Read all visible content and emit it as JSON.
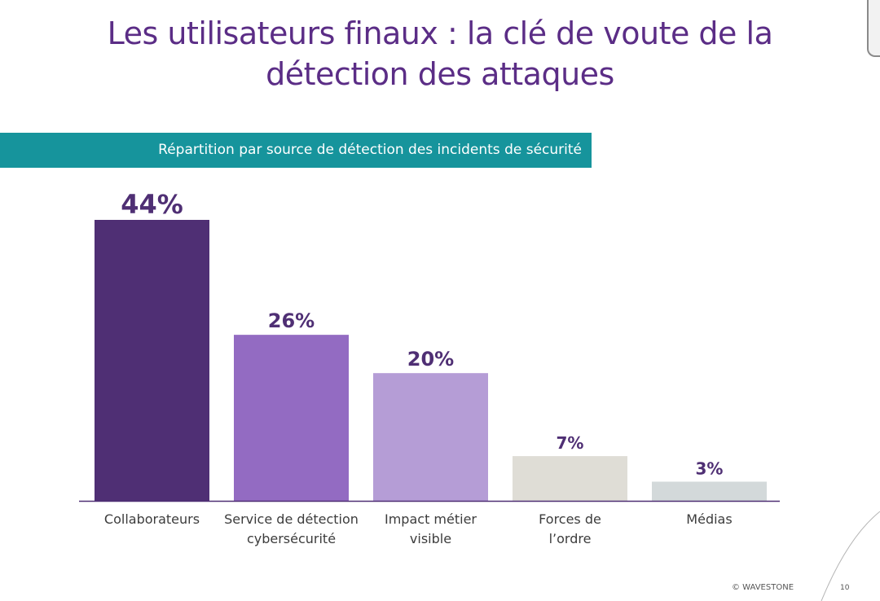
{
  "slide": {
    "title_line1": "Les utilisateurs finaux : la clé de voute de la",
    "title_line2": "détection des attaques",
    "banner": "Répartition par source de détection des incidents de sécurité",
    "footer_copyright": "© WAVESTONE",
    "page_number": "10"
  },
  "chart_data": {
    "type": "bar",
    "title": "Répartition par source de détection des incidents de sécurité",
    "categories": [
      [
        "Collaborateurs"
      ],
      [
        "Service de détection",
        "cybersécurité"
      ],
      [
        "Impact métier",
        "visible"
      ],
      [
        "Forces de",
        "l’ordre"
      ],
      [
        "Médias"
      ]
    ],
    "values": [
      44,
      26,
      20,
      7,
      3
    ],
    "value_labels": [
      "44%",
      "26%",
      "20%",
      "7%",
      "3%"
    ],
    "colors": [
      "#4f2f74",
      "#936bc2",
      "#b59dd6",
      "#dfddd6",
      "#d3d9da"
    ],
    "label_color": "#4f2f74",
    "ylim": [
      0,
      44
    ],
    "grid": false,
    "legend": "none"
  }
}
